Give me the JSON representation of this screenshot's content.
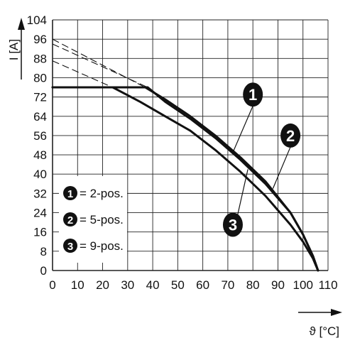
{
  "chart_data": {
    "type": "line",
    "xlabel": "ϑ [°C]",
    "ylabel": "I [A]",
    "xlim": [
      0,
      110
    ],
    "ylim": [
      0,
      104
    ],
    "x_ticks": [
      "0",
      "10",
      "20",
      "30",
      "40",
      "50",
      "60",
      "70",
      "80",
      "90",
      "100",
      "110"
    ],
    "y_ticks": [
      "0",
      "8",
      "16",
      "24",
      "32",
      "40",
      "48",
      "56",
      "64",
      "72",
      "80",
      "88",
      "96",
      "104"
    ],
    "grid": true,
    "legend_position": "bottom-left",
    "series": [
      {
        "name": "2-pos.",
        "marker": "1",
        "x": [
          0,
          37,
          45,
          55,
          65,
          75,
          85,
          95,
          100,
          104,
          106
        ],
        "y": [
          76,
          76,
          71,
          64,
          56,
          47,
          37,
          24,
          15,
          6,
          0
        ],
        "dashed_extension": {
          "x": [
            0,
            37
          ],
          "y": [
            96,
            76
          ]
        }
      },
      {
        "name": "5-pos.",
        "marker": "2",
        "x": [
          0,
          38,
          45,
          55,
          65,
          75,
          85,
          95,
          100,
          104,
          106
        ],
        "y": [
          76,
          76,
          70,
          63,
          55,
          46,
          36,
          24,
          15,
          6,
          0
        ],
        "dashed_extension": {
          "x": [
            0,
            38
          ],
          "y": [
            94,
            76
          ]
        }
      },
      {
        "name": "9-pos.",
        "marker": "3",
        "x": [
          0,
          24,
          35,
          45,
          55,
          65,
          75,
          85,
          95,
          100,
          104,
          106
        ],
        "y": [
          76,
          76,
          70,
          64,
          58,
          50,
          41,
          31,
          19,
          12,
          5,
          0
        ],
        "dashed_extension": {
          "x": [
            0,
            24
          ],
          "y": [
            87,
            76
          ]
        }
      }
    ],
    "legend": [
      {
        "marker": "1",
        "label": "= 2-pos."
      },
      {
        "marker": "2",
        "label": "= 5-pos."
      },
      {
        "marker": "3",
        "label": "= 9-pos."
      }
    ],
    "callouts": [
      {
        "marker": "1",
        "label_x": 80,
        "label_y": 73,
        "x": 72,
        "y": 49
      },
      {
        "marker": "2",
        "label_x": 95,
        "label_y": 56,
        "x": 88,
        "y": 34
      },
      {
        "marker": "3",
        "label_x": 72,
        "label_y": 19,
        "x": 78,
        "y": 42
      }
    ],
    "colors": {
      "line": "#111111",
      "grid": "#222222"
    }
  }
}
